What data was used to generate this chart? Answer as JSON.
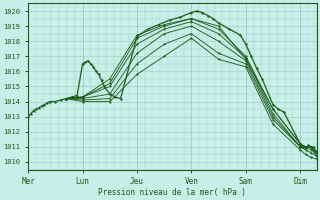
{
  "bg_color": "#c8eee8",
  "grid_color": "#a0d4c8",
  "line_color": "#1a5c1a",
  "xlabel": "Pression niveau de la mer( hPa )",
  "yticks": [
    1010,
    1011,
    1012,
    1013,
    1014,
    1015,
    1016,
    1017,
    1018,
    1019,
    1020
  ],
  "ylim": [
    1009.5,
    1020.5
  ],
  "xtick_labels": [
    "Mer",
    "Lun",
    "Jeu",
    "Ven",
    "Sam",
    "Dim"
  ],
  "xtick_positions": [
    0,
    1,
    2,
    3,
    4,
    5
  ],
  "xlim": [
    0,
    5.3
  ],
  "vlines": [
    0,
    1,
    2,
    3,
    4,
    5
  ],
  "series": [
    {
      "x": [
        0.0,
        0.05,
        0.1,
        0.15,
        0.2,
        0.25,
        0.3,
        0.35,
        0.4,
        0.5,
        0.6,
        0.7,
        0.8,
        0.9,
        1.0,
        1.05,
        1.1,
        1.15,
        1.2,
        1.25,
        1.3,
        1.35,
        1.4,
        1.5,
        1.6,
        1.7,
        2.0,
        2.2,
        2.4,
        2.6,
        2.8,
        3.0,
        3.1,
        3.2,
        3.3,
        3.4,
        3.5,
        3.7,
        3.9,
        4.0,
        4.1,
        4.2,
        4.3,
        4.5,
        4.6,
        4.7,
        5.0,
        5.05,
        5.1,
        5.15,
        5.2,
        5.25,
        5.3
      ],
      "y": [
        1013.0,
        1013.2,
        1013.4,
        1013.5,
        1013.6,
        1013.7,
        1013.8,
        1013.9,
        1014.0,
        1014.0,
        1014.1,
        1014.2,
        1014.3,
        1014.4,
        1016.5,
        1016.6,
        1016.7,
        1016.5,
        1016.3,
        1016.0,
        1015.8,
        1015.4,
        1015.0,
        1014.5,
        1014.3,
        1014.2,
        1018.3,
        1018.8,
        1019.1,
        1019.4,
        1019.6,
        1019.9,
        1020.0,
        1019.9,
        1019.7,
        1019.5,
        1019.2,
        1018.8,
        1018.4,
        1017.8,
        1017.0,
        1016.2,
        1015.5,
        1013.8,
        1013.5,
        1013.3,
        1011.2,
        1011.0,
        1010.9,
        1011.1,
        1011.0,
        1010.7,
        1010.4
      ]
    },
    {
      "x": [
        0.7,
        1.0,
        1.5,
        2.0,
        2.5,
        3.0,
        3.5,
        4.0,
        4.5,
        5.0,
        5.1,
        5.2,
        5.25,
        5.3
      ],
      "y": [
        1014.2,
        1014.3,
        1015.2,
        1018.2,
        1019.0,
        1019.5,
        1019.0,
        1016.8,
        1013.5,
        1011.2,
        1011.0,
        1011.0,
        1011.0,
        1010.6
      ]
    },
    {
      "x": [
        0.7,
        1.0,
        1.5,
        2.0,
        2.5,
        3.0,
        3.5,
        4.0,
        4.5,
        5.0,
        5.1,
        5.2,
        5.3
      ],
      "y": [
        1014.2,
        1014.3,
        1015.5,
        1018.4,
        1019.1,
        1019.5,
        1018.8,
        1017.0,
        1013.5,
        1011.2,
        1011.0,
        1011.0,
        1010.7
      ]
    },
    {
      "x": [
        0.7,
        1.0,
        1.5,
        2.0,
        2.5,
        3.0,
        3.5,
        4.0,
        4.5,
        5.0,
        5.1,
        5.2,
        5.3
      ],
      "y": [
        1014.2,
        1014.3,
        1015.0,
        1017.8,
        1018.8,
        1019.3,
        1018.5,
        1016.9,
        1013.2,
        1011.0,
        1011.0,
        1011.0,
        1010.7
      ]
    },
    {
      "x": [
        0.7,
        1.0,
        1.5,
        2.0,
        2.5,
        3.0,
        3.5,
        4.0,
        4.5,
        5.0,
        5.1,
        5.2,
        5.3
      ],
      "y": [
        1014.2,
        1014.2,
        1014.5,
        1017.2,
        1018.5,
        1019.0,
        1018.0,
        1016.7,
        1013.0,
        1011.0,
        1011.0,
        1010.8,
        1010.6
      ]
    },
    {
      "x": [
        0.7,
        1.0,
        1.5,
        2.0,
        2.5,
        3.0,
        3.5,
        4.0,
        4.5,
        5.0,
        5.1,
        5.2,
        5.3
      ],
      "y": [
        1014.2,
        1014.1,
        1014.2,
        1016.5,
        1017.8,
        1018.5,
        1017.2,
        1016.5,
        1012.8,
        1011.0,
        1010.8,
        1010.6,
        1010.4
      ]
    },
    {
      "x": [
        0.7,
        1.0,
        1.5,
        2.0,
        2.5,
        3.0,
        3.5,
        4.0,
        4.5,
        5.0,
        5.1,
        5.2,
        5.3
      ],
      "y": [
        1014.2,
        1014.0,
        1014.0,
        1015.8,
        1017.0,
        1018.2,
        1016.8,
        1016.3,
        1012.5,
        1010.8,
        1010.5,
        1010.3,
        1010.2
      ]
    }
  ]
}
